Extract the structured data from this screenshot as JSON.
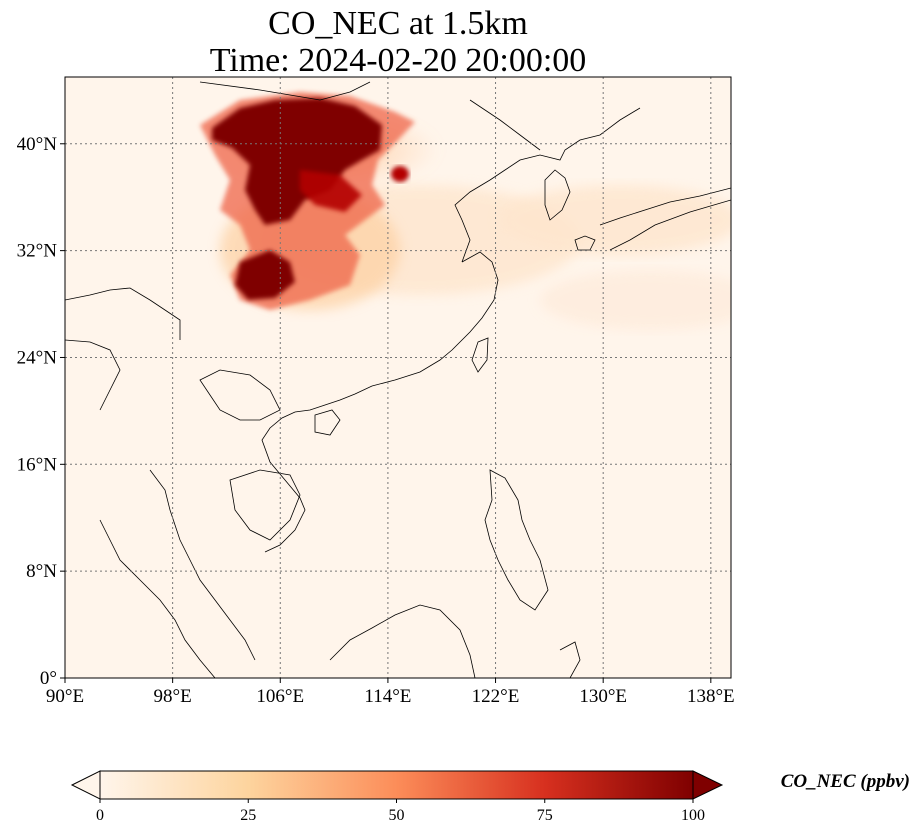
{
  "title": {
    "line1": "CO_NEC at 1.5km",
    "line2": "Time: 2024-02-20 20:00:00"
  },
  "colors": {
    "low": "#fff5eb",
    "mid": "#fdae6b",
    "high": "#7f0000",
    "grid": "#777777",
    "coast": "#000000"
  },
  "map": {
    "lon_range": [
      90,
      139.5
    ],
    "lat_range": [
      0,
      45
    ],
    "lon_ticks": [
      {
        "value": 90,
        "label": "90°E"
      },
      {
        "value": 98,
        "label": "98°E"
      },
      {
        "value": 106,
        "label": "106°E"
      },
      {
        "value": 114,
        "label": "114°E"
      },
      {
        "value": 122,
        "label": "122°E"
      },
      {
        "value": 130,
        "label": "130°E"
      },
      {
        "value": 138,
        "label": "138°E"
      }
    ],
    "lat_ticks": [
      {
        "value": 0,
        "label": "0°"
      },
      {
        "value": 8,
        "label": "8°N"
      },
      {
        "value": 16,
        "label": "16°N"
      },
      {
        "value": 24,
        "label": "24°N"
      },
      {
        "value": 32,
        "label": "32°N"
      },
      {
        "value": 40,
        "label": "40°N"
      }
    ],
    "grid_lines": "dotted"
  },
  "colorbar": {
    "label": "CO_NEC (ppbv)",
    "min": 0,
    "max": 100,
    "extend": "both",
    "ticks": [
      {
        "value": 0,
        "label": "0"
      },
      {
        "value": 25,
        "label": "25"
      },
      {
        "value": 50,
        "label": "50"
      },
      {
        "value": 75,
        "label": "75"
      },
      {
        "value": 100,
        "label": "100"
      }
    ]
  }
}
